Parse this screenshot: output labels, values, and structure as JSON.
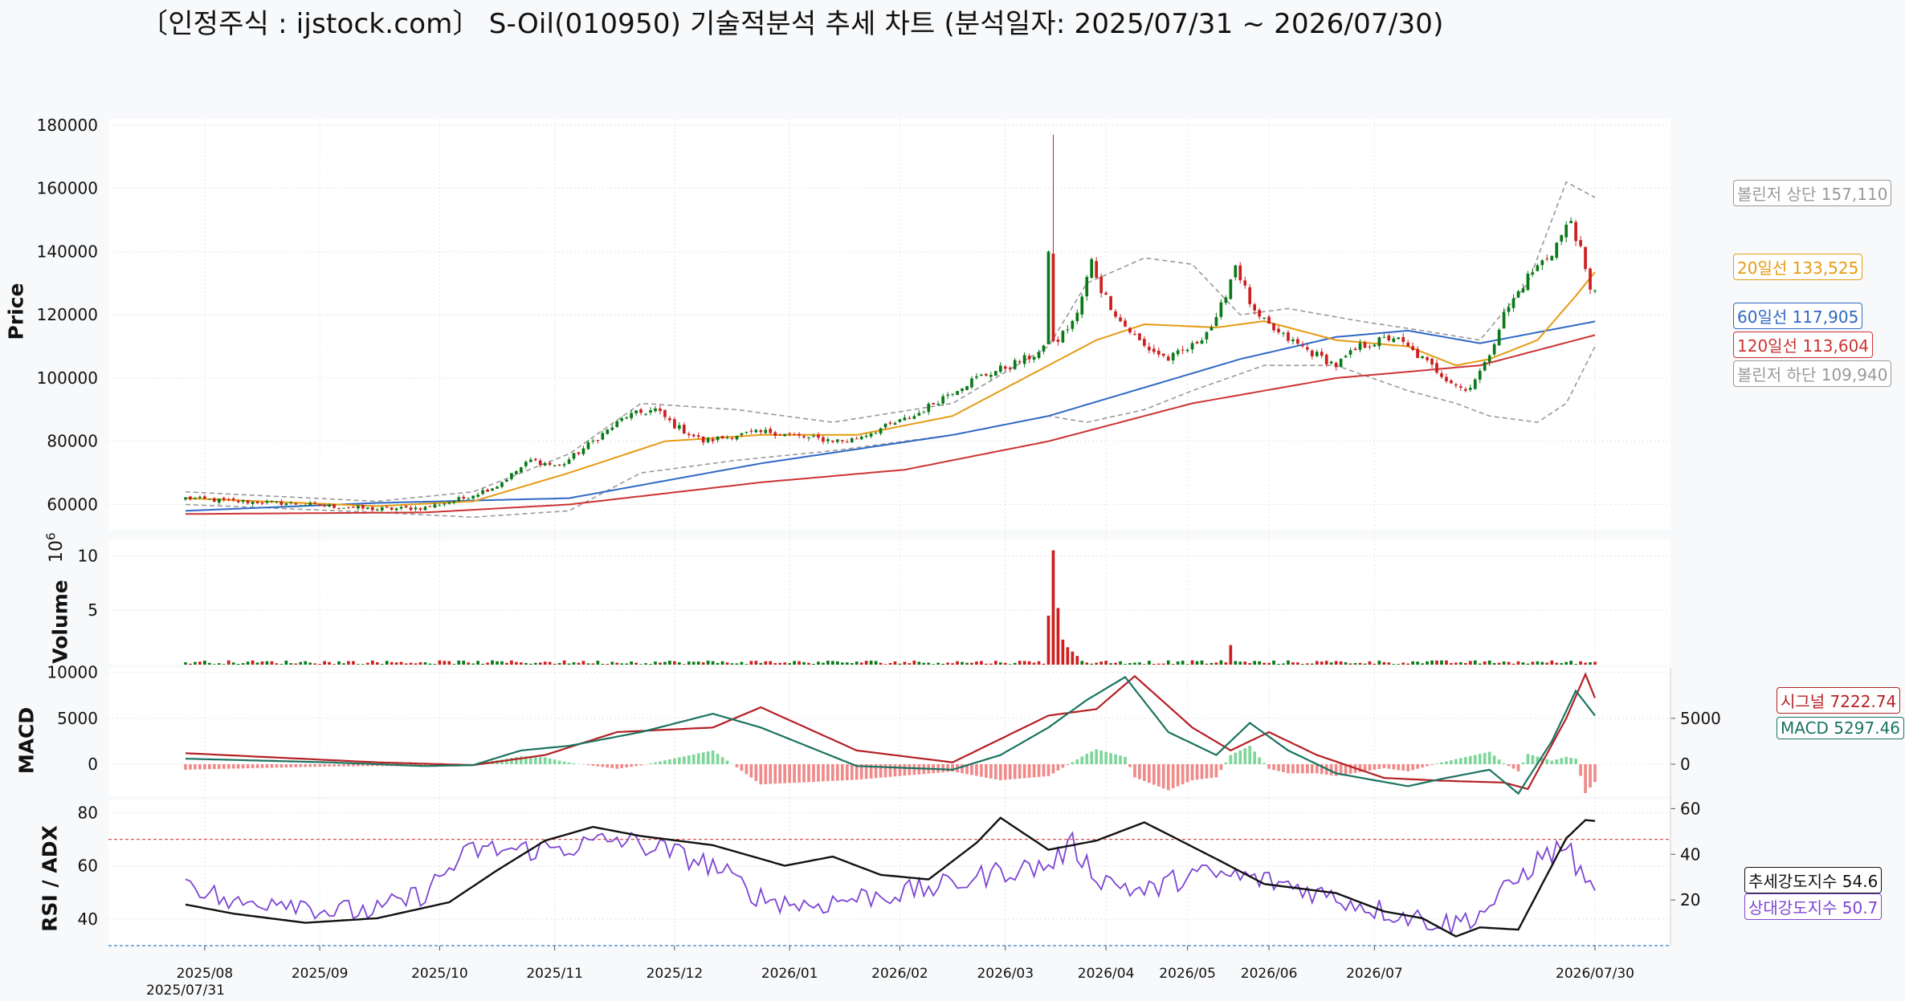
{
  "title": "〔인정주식 : ijstock.com〕 S-Oil(010950) 기술적분석 추세 차트 (분석일자: 2025/07/31 ~ 2026/07/30)",
  "chart_data": {
    "type": "line",
    "price_panel": {
      "ylabel": "Price",
      "ylim": [
        52000,
        182000
      ],
      "yticks": [
        60000,
        80000,
        100000,
        120000,
        140000,
        160000,
        180000
      ],
      "candles_ohlc_anchor": [
        {
          "x": 0,
          "c": 62000
        },
        {
          "x": 10,
          "c": 61000
        },
        {
          "x": 20,
          "c": 60500
        },
        {
          "x": 30,
          "c": 59500
        },
        {
          "x": 40,
          "c": 58500
        },
        {
          "x": 50,
          "c": 59000
        },
        {
          "x": 58,
          "c": 62000
        },
        {
          "x": 65,
          "c": 66000
        },
        {
          "x": 72,
          "c": 74000
        },
        {
          "x": 78,
          "c": 72000
        },
        {
          "x": 85,
          "c": 80000
        },
        {
          "x": 92,
          "c": 88000
        },
        {
          "x": 98,
          "c": 90000
        },
        {
          "x": 102,
          "c": 85000
        },
        {
          "x": 108,
          "c": 80000
        },
        {
          "x": 115,
          "c": 82000
        },
        {
          "x": 122,
          "c": 83000
        },
        {
          "x": 130,
          "c": 81000
        },
        {
          "x": 138,
          "c": 80000
        },
        {
          "x": 145,
          "c": 84000
        },
        {
          "x": 152,
          "c": 88000
        },
        {
          "x": 160,
          "c": 96000
        },
        {
          "x": 165,
          "c": 100000
        },
        {
          "x": 172,
          "c": 104000
        },
        {
          "x": 178,
          "c": 108000
        },
        {
          "x": 182,
          "c": 112000
        },
        {
          "x": 186,
          "c": 120000
        },
        {
          "x": 189,
          "c": 137000
        },
        {
          "x": 191,
          "c": 128000
        },
        {
          "x": 195,
          "c": 118000
        },
        {
          "x": 200,
          "c": 110000
        },
        {
          "x": 205,
          "c": 106000
        },
        {
          "x": 210,
          "c": 110000
        },
        {
          "x": 215,
          "c": 118000
        },
        {
          "x": 219,
          "c": 136000
        },
        {
          "x": 223,
          "c": 120000
        },
        {
          "x": 228,
          "c": 114000
        },
        {
          "x": 235,
          "c": 108000
        },
        {
          "x": 240,
          "c": 104000
        },
        {
          "x": 245,
          "c": 110000
        },
        {
          "x": 252,
          "c": 113000
        },
        {
          "x": 258,
          "c": 106000
        },
        {
          "x": 263,
          "c": 100000
        },
        {
          "x": 267,
          "c": 96000
        },
        {
          "x": 271,
          "c": 104000
        },
        {
          "x": 275,
          "c": 120000
        },
        {
          "x": 280,
          "c": 132000
        },
        {
          "x": 285,
          "c": 140000
        },
        {
          "x": 289,
          "c": 150000
        },
        {
          "x": 291,
          "c": 140000
        },
        {
          "x": 293,
          "c": 127000
        },
        {
          "x": 294,
          "c": 128500
        }
      ],
      "ma20_anchor": [
        [
          0,
          62000
        ],
        [
          40,
          59500
        ],
        [
          60,
          61000
        ],
        [
          80,
          70000
        ],
        [
          100,
          80000
        ],
        [
          120,
          82000
        ],
        [
          140,
          82000
        ],
        [
          160,
          88000
        ],
        [
          180,
          104000
        ],
        [
          190,
          112000
        ],
        [
          200,
          117000
        ],
        [
          215,
          116000
        ],
        [
          225,
          118000
        ],
        [
          240,
          112000
        ],
        [
          255,
          110000
        ],
        [
          265,
          104000
        ],
        [
          272,
          106000
        ],
        [
          282,
          112000
        ],
        [
          290,
          126000
        ],
        [
          294,
          133525
        ]
      ],
      "ma60_anchor": [
        [
          0,
          58000
        ],
        [
          40,
          60500
        ],
        [
          80,
          62000
        ],
        [
          120,
          73000
        ],
        [
          160,
          82000
        ],
        [
          180,
          88000
        ],
        [
          200,
          97000
        ],
        [
          220,
          106000
        ],
        [
          240,
          113000
        ],
        [
          255,
          115000
        ],
        [
          270,
          111000
        ],
        [
          294,
          117905
        ]
      ],
      "ma120_anchor": [
        [
          0,
          57000
        ],
        [
          50,
          57500
        ],
        [
          80,
          60000
        ],
        [
          120,
          67000
        ],
        [
          150,
          71000
        ],
        [
          180,
          80000
        ],
        [
          210,
          92000
        ],
        [
          240,
          100000
        ],
        [
          270,
          104000
        ],
        [
          294,
          113604
        ]
      ],
      "bb_upper_anchor": [
        [
          0,
          64000
        ],
        [
          40,
          61000
        ],
        [
          60,
          64000
        ],
        [
          80,
          76000
        ],
        [
          95,
          92000
        ],
        [
          115,
          90000
        ],
        [
          135,
          86000
        ],
        [
          160,
          92000
        ],
        [
          180,
          110000
        ],
        [
          188,
          130000
        ],
        [
          200,
          138000
        ],
        [
          210,
          136000
        ],
        [
          220,
          120000
        ],
        [
          230,
          122000
        ],
        [
          245,
          118000
        ],
        [
          258,
          115000
        ],
        [
          270,
          112000
        ],
        [
          280,
          130000
        ],
        [
          288,
          162000
        ],
        [
          294,
          157110
        ]
      ],
      "bb_lower_anchor": [
        [
          0,
          60000
        ],
        [
          40,
          57500
        ],
        [
          60,
          56000
        ],
        [
          80,
          58000
        ],
        [
          95,
          70000
        ],
        [
          115,
          74000
        ],
        [
          135,
          77000
        ],
        [
          160,
          82000
        ],
        [
          180,
          88000
        ],
        [
          188,
          86000
        ],
        [
          200,
          90000
        ],
        [
          210,
          96000
        ],
        [
          225,
          104000
        ],
        [
          240,
          104000
        ],
        [
          255,
          96000
        ],
        [
          265,
          92000
        ],
        [
          272,
          88000
        ],
        [
          282,
          86000
        ],
        [
          288,
          92000
        ],
        [
          294,
          109940
        ]
      ]
    },
    "volume_panel": {
      "ylabel": "Volume",
      "scale_label": "10",
      "scale_exp": "6",
      "ylim": [
        0,
        11.5
      ],
      "yticks": [
        5,
        10
      ],
      "spikes": [
        [
          180,
          4.5
        ],
        [
          181,
          10.5
        ],
        [
          182,
          5.2
        ],
        [
          183,
          2.3
        ],
        [
          184,
          1.6
        ],
        [
          185,
          1.2
        ],
        [
          186,
          0.8
        ],
        [
          218,
          1.8
        ]
      ]
    },
    "macd_panel": {
      "ylabel": "MACD",
      "ylim": [
        -3500,
        10500
      ],
      "yticks_left": [
        0,
        5000,
        10000
      ],
      "yticks_right": [
        0,
        5000
      ],
      "macd_anchor": [
        [
          0,
          600
        ],
        [
          30,
          200
        ],
        [
          50,
          -200
        ],
        [
          60,
          -100
        ],
        [
          70,
          1500
        ],
        [
          80,
          2000
        ],
        [
          95,
          3500
        ],
        [
          110,
          5500
        ],
        [
          120,
          4000
        ],
        [
          140,
          -200
        ],
        [
          160,
          -600
        ],
        [
          170,
          1000
        ],
        [
          180,
          4000
        ],
        [
          188,
          7000
        ],
        [
          196,
          9500
        ],
        [
          205,
          3500
        ],
        [
          215,
          1000
        ],
        [
          222,
          4500
        ],
        [
          230,
          1500
        ],
        [
          240,
          -1000
        ],
        [
          255,
          -2400
        ],
        [
          262,
          -1600
        ],
        [
          272,
          -600
        ],
        [
          278,
          -3200
        ],
        [
          285,
          2500
        ],
        [
          290,
          8000
        ],
        [
          294,
          5297.46
        ]
      ],
      "signal_anchor": [
        [
          0,
          1200
        ],
        [
          40,
          200
        ],
        [
          60,
          -100
        ],
        [
          75,
          1000
        ],
        [
          90,
          3500
        ],
        [
          110,
          4000
        ],
        [
          120,
          6200
        ],
        [
          140,
          1500
        ],
        [
          160,
          200
        ],
        [
          180,
          5300
        ],
        [
          190,
          6000
        ],
        [
          198,
          9600
        ],
        [
          210,
          4000
        ],
        [
          218,
          1500
        ],
        [
          226,
          3500
        ],
        [
          236,
          1000
        ],
        [
          250,
          -1500
        ],
        [
          262,
          -1800
        ],
        [
          275,
          -2000
        ],
        [
          280,
          -2700
        ],
        [
          288,
          5000
        ],
        [
          292,
          9800
        ],
        [
          294,
          7222.74
        ]
      ]
    },
    "rsi_adx_panel": {
      "ylabel": "RSI / ADX",
      "ylim_left": [
        30,
        85
      ],
      "yticks_left": [
        40,
        60,
        80
      ],
      "yticks_right": [
        20,
        40,
        60
      ],
      "rsi_upper_line": 70,
      "rsi_lower_line": 30,
      "adx_anchor": [
        [
          0,
          18
        ],
        [
          10,
          14
        ],
        [
          25,
          10
        ],
        [
          40,
          12
        ],
        [
          55,
          19
        ],
        [
          65,
          33
        ],
        [
          75,
          46
        ],
        [
          85,
          52
        ],
        [
          95,
          48
        ],
        [
          110,
          44
        ],
        [
          125,
          35
        ],
        [
          135,
          39
        ],
        [
          145,
          31
        ],
        [
          155,
          29
        ],
        [
          165,
          45
        ],
        [
          170,
          56
        ],
        [
          180,
          42
        ],
        [
          190,
          46
        ],
        [
          200,
          54
        ],
        [
          215,
          38
        ],
        [
          225,
          27
        ],
        [
          240,
          23
        ],
        [
          250,
          15
        ],
        [
          258,
          12
        ],
        [
          265,
          4
        ],
        [
          270,
          8
        ],
        [
          278,
          7
        ],
        [
          288,
          47
        ],
        [
          292,
          55
        ],
        [
          294,
          54.6
        ]
      ],
      "rsi_anchor": [
        [
          0,
          55
        ],
        [
          10,
          45
        ],
        [
          20,
          48
        ],
        [
          30,
          43
        ],
        [
          40,
          43
        ],
        [
          50,
          50
        ],
        [
          55,
          59
        ],
        [
          60,
          66
        ],
        [
          70,
          66
        ],
        [
          80,
          67
        ],
        [
          90,
          70
        ],
        [
          100,
          66
        ],
        [
          110,
          60
        ],
        [
          120,
          48
        ],
        [
          130,
          45
        ],
        [
          140,
          48
        ],
        [
          150,
          50
        ],
        [
          160,
          53
        ],
        [
          170,
          58
        ],
        [
          180,
          60
        ],
        [
          185,
          68
        ],
        [
          190,
          56
        ],
        [
          200,
          50
        ],
        [
          210,
          57
        ],
        [
          220,
          56
        ],
        [
          230,
          53
        ],
        [
          240,
          48
        ],
        [
          250,
          43
        ],
        [
          258,
          40
        ],
        [
          264,
          38
        ],
        [
          270,
          42
        ],
        [
          275,
          50
        ],
        [
          282,
          62
        ],
        [
          288,
          68
        ],
        [
          292,
          53
        ],
        [
          294,
          50.7
        ]
      ]
    },
    "x_categories": [
      "2025/08",
      "2025/09",
      "2025/10",
      "2025/11",
      "2025/12",
      "2026/01",
      "2026/02",
      "2026/03",
      "2026/04",
      "2026/05",
      "2026/06",
      "2026/07",
      "2026/07/30"
    ],
    "x_start_label": "2025/07/31",
    "legend": {
      "bb_upper": "볼린저 상단 157,110",
      "ma20": "20일선 133,525",
      "ma60": "60일선 117,905",
      "ma120": "120일선 113,604",
      "bb_lower": "볼린저 하단 109,940",
      "signal": "시그널 7222.74",
      "macd": "MACD 5297.46",
      "adx": "추세강도지수 54.6",
      "rsi": "상대강도지수 50.7"
    },
    "colors": {
      "up": "#0a7a18",
      "down": "#cc1f1f",
      "ma20": "#e69b12",
      "ma60": "#2f68c4",
      "ma120": "#cc3333",
      "bb": "#999999",
      "macd": "#1a7360",
      "signal": "#b52024",
      "hist_pos": "#7ed69a",
      "hist_neg": "#f08a8a",
      "rsi": "#7d45d4",
      "adx": "#111111",
      "upper_ref": "#e05050",
      "lower_ref": "#3a7cc4"
    }
  }
}
